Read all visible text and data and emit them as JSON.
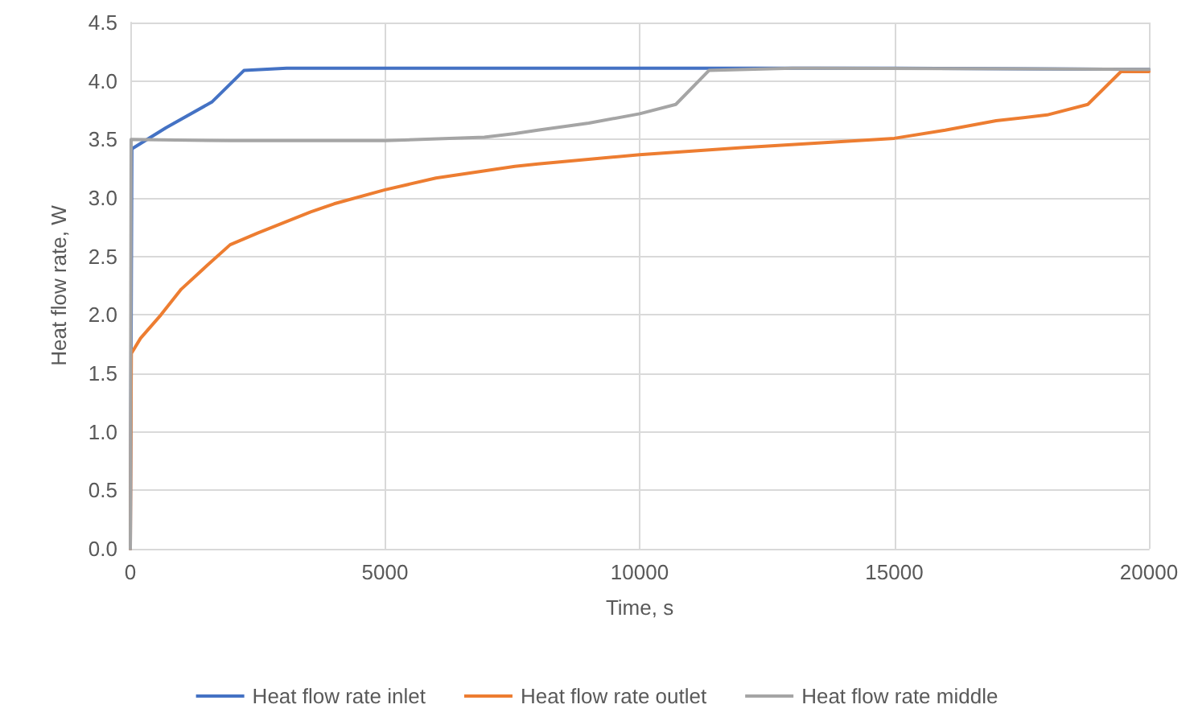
{
  "chart_data": {
    "type": "line",
    "xlabel": "Time, s",
    "ylabel": "Heat flow rate, W",
    "xlim": [
      0,
      20000
    ],
    "xticks": [
      0,
      5000,
      10000,
      15000,
      20000
    ],
    "ylim": [
      0,
      4.5
    ],
    "yticks": [
      {
        "value": 0,
        "label": "0.0"
      },
      0.5,
      {
        "value": 1,
        "label": "1.0"
      },
      1.5,
      {
        "value": 2,
        "label": "2.0"
      },
      2.5,
      {
        "value": 3,
        "label": "3.0"
      },
      3.5,
      {
        "value": 4,
        "label": "4.0"
      },
      4.5
    ],
    "grid": true,
    "legend": "bottom",
    "marker": "none",
    "line_style": "solid",
    "series": [
      {
        "name": "Heat flow rate inlet",
        "color": "#4472c4",
        "x": [
          0,
          30,
          700,
          1600,
          2230,
          3070,
          10000,
          15000,
          20000
        ],
        "values": [
          0,
          3.42,
          3.6,
          3.82,
          4.09,
          4.11,
          4.11,
          4.11,
          4.1
        ]
      },
      {
        "name": "Heat flow rate outlet",
        "color": "#ed7d31",
        "x": [
          0,
          20,
          200,
          600,
          1000,
          1500,
          1960,
          2500,
          3540,
          4000,
          5000,
          6000,
          7550,
          8000,
          10000,
          12000,
          13500,
          15000,
          16000,
          17000,
          18000,
          18800,
          19450,
          20000
        ],
        "values": [
          0,
          1.67,
          1.8,
          2.0,
          2.22,
          2.42,
          2.6,
          2.7,
          2.88,
          2.95,
          3.07,
          3.17,
          3.27,
          3.29,
          3.37,
          3.43,
          3.47,
          3.51,
          3.58,
          3.66,
          3.71,
          3.8,
          4.08,
          4.08
        ]
      },
      {
        "name": "Heat flow rate middle",
        "color": "#a5a5a5",
        "x": [
          0,
          15,
          2000,
          5000,
          6950,
          7550,
          8000,
          9000,
          10000,
          10710,
          11360,
          13000,
          20000
        ],
        "values": [
          0,
          3.5,
          3.49,
          3.49,
          3.52,
          3.55,
          3.58,
          3.64,
          3.72,
          3.8,
          4.09,
          4.11,
          4.1
        ]
      }
    ]
  }
}
